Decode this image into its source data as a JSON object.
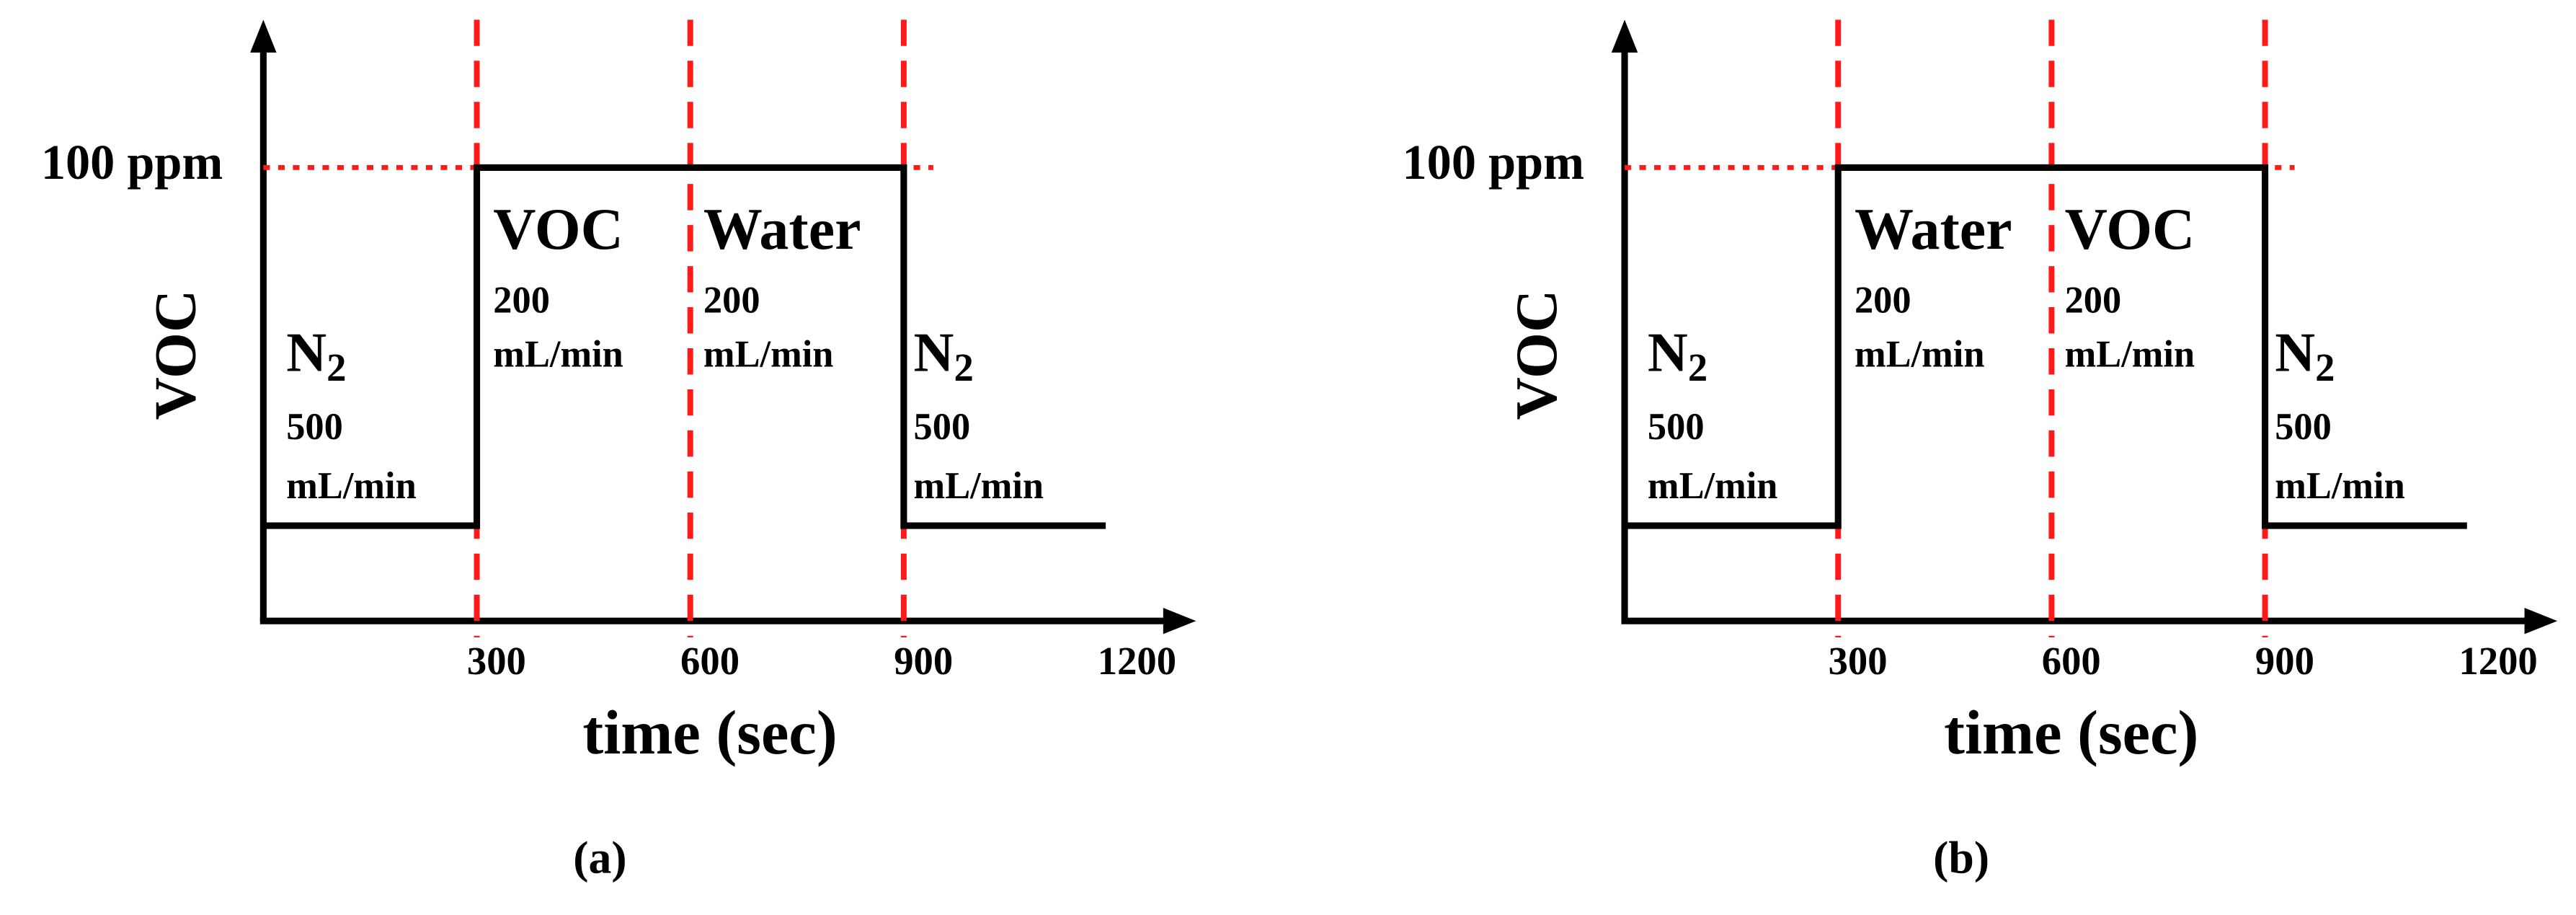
{
  "panels": [
    {
      "caption": "(a)",
      "y_label": "VOC",
      "x_label": "time (sec)",
      "level_label": "100 ppm",
      "x_ticks": [
        300,
        600,
        900,
        1200
      ],
      "segments": [
        {
          "gas": "N",
          "subscript": "2",
          "flow": "500",
          "unit": "mL/min"
        },
        {
          "gas": "VOC",
          "flow": "200",
          "unit": "mL/min"
        },
        {
          "gas": "Water",
          "flow": "200",
          "unit": "mL/min"
        },
        {
          "gas": "N",
          "subscript": "2",
          "flow": "500",
          "unit": "mL/min"
        }
      ]
    },
    {
      "caption": "(b)",
      "y_label": "VOC",
      "x_label": "time (sec)",
      "level_label": "100 ppm",
      "x_ticks": [
        300,
        600,
        900,
        1200
      ],
      "segments": [
        {
          "gas": "N",
          "subscript": "2",
          "flow": "500",
          "unit": "mL/min"
        },
        {
          "gas": "Water",
          "flow": "200",
          "unit": "mL/min"
        },
        {
          "gas": "VOC",
          "flow": "200",
          "unit": "mL/min"
        },
        {
          "gas": "N",
          "subscript": "2",
          "flow": "500",
          "unit": "mL/min"
        }
      ]
    }
  ]
}
